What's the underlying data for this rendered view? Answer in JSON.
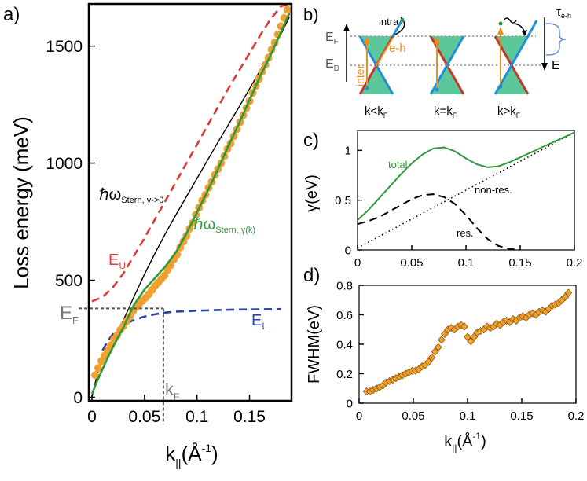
{
  "colors": {
    "orange": "#f0a030",
    "green": "#2e9a3a",
    "red": "#d93a3a",
    "blue": "#2a45a0",
    "cone_fill": "#5cc79a",
    "cone_blue": "#1f8fd8",
    "cone_red": "#c0392b",
    "gray": "#777777"
  },
  "chart_data": [
    {
      "id": "a",
      "type": "line",
      "panel_label": "a)",
      "xlabel_main": "k",
      "xlabel_sub": "||",
      "xlabel_unit": "(Å",
      "xlabel_sup": "-1",
      "xlabel_close": ")",
      "ylabel": "Loss energy (meV)",
      "xlim": [
        -0.003,
        0.19
      ],
      "ylim": [
        -15,
        1680
      ],
      "xticks": [
        0,
        0.05,
        0.1,
        0.15
      ],
      "xtick_labels": [
        "0",
        "0.05",
        "0.1",
        "0.15"
      ],
      "yticks": [
        0,
        500,
        1000,
        1500
      ],
      "ytick_labels": [
        "0",
        "500",
        "1000",
        "1500"
      ],
      "annotations": {
        "EF_main": "E",
        "EF_sub": "F",
        "kF_main": "k",
        "kF_sub": "F",
        "EU_main": "E",
        "EU_sub": "U",
        "EL_main": "E",
        "EL_sub": "L",
        "stern0_main": "ℏω",
        "stern0_sub": "Stern, γ->0",
        "sternk_main": "ℏω",
        "sternk_sub": "Stern, γ(k)"
      },
      "EF_value": 380,
      "kF_value": 0.068,
      "series": [
        {
          "name": "experiment",
          "style": "markers",
          "x": [
            0.003,
            0.006,
            0.009,
            0.012,
            0.015,
            0.018,
            0.021,
            0.024,
            0.027,
            0.03,
            0.033,
            0.036,
            0.039,
            0.042,
            0.045,
            0.048,
            0.051,
            0.054,
            0.057,
            0.06,
            0.063,
            0.066,
            0.069,
            0.072,
            0.075,
            0.078,
            0.081,
            0.084,
            0.087,
            0.09,
            0.093,
            0.096,
            0.099,
            0.102,
            0.105,
            0.108,
            0.111,
            0.114,
            0.117,
            0.12,
            0.123,
            0.126,
            0.129,
            0.132,
            0.135,
            0.138,
            0.141,
            0.144,
            0.147,
            0.15,
            0.153,
            0.156,
            0.159,
            0.162,
            0.165,
            0.168,
            0.171,
            0.174,
            0.177,
            0.18,
            0.183,
            0.186
          ],
          "y": [
            95,
            125,
            155,
            178,
            200,
            222,
            248,
            265,
            288,
            305,
            325,
            345,
            368,
            385,
            400,
            412,
            425,
            440,
            458,
            475,
            490,
            505,
            520,
            545,
            565,
            590,
            610,
            640,
            665,
            690,
            720,
            745,
            780,
            810,
            840,
            865,
            895,
            920,
            950,
            975,
            1000,
            1030,
            1060,
            1085,
            1115,
            1145,
            1175,
            1205,
            1235,
            1265,
            1300,
            1330,
            1360,
            1390,
            1420,
            1450,
            1485,
            1515,
            1550,
            1585,
            1620,
            1655
          ]
        },
        {
          "name": "E_U",
          "style": "dashed",
          "x": [
            0,
            0.01,
            0.02,
            0.03,
            0.04,
            0.05,
            0.06,
            0.07,
            0.08,
            0.09,
            0.1,
            0.11,
            0.12,
            0.13,
            0.14,
            0.15,
            0.16,
            0.17,
            0.18,
            0.188
          ],
          "y": [
            410,
            428,
            470,
            530,
            605,
            680,
            760,
            840,
            920,
            1000,
            1080,
            1160,
            1240,
            1320,
            1395,
            1470,
            1545,
            1615,
            1670,
            1680
          ]
        },
        {
          "name": "E_L",
          "style": "dashed",
          "x": [
            0.01,
            0.015,
            0.02,
            0.025,
            0.03,
            0.035,
            0.04,
            0.05,
            0.06,
            0.07,
            0.08,
            0.1,
            0.12,
            0.14,
            0.16,
            0.18
          ],
          "y": [
            200,
            240,
            270,
            292,
            308,
            320,
            330,
            345,
            355,
            362,
            366,
            370,
            373,
            375,
            376,
            377
          ]
        },
        {
          "name": "stern_gamma0",
          "style": "solid",
          "x": [
            0,
            0.005,
            0.01,
            0.02,
            0.03,
            0.04,
            0.05,
            0.06,
            0.07,
            0.08,
            0.1,
            0.12,
            0.14,
            0.16,
            0.18,
            0.188
          ],
          "y": [
            0,
            100,
            150,
            240,
            330,
            430,
            525,
            615,
            700,
            780,
            935,
            1090,
            1240,
            1395,
            1550,
            1625
          ]
        },
        {
          "name": "stern_gammak",
          "style": "solid",
          "x": [
            0,
            0.005,
            0.01,
            0.015,
            0.02,
            0.03,
            0.04,
            0.05,
            0.06,
            0.07,
            0.08,
            0.09,
            0.1,
            0.11,
            0.12,
            0.13,
            0.14,
            0.15,
            0.16,
            0.17,
            0.18,
            0.188
          ],
          "y": [
            15,
            70,
            120,
            170,
            215,
            300,
            395,
            460,
            510,
            560,
            620,
            700,
            790,
            880,
            975,
            1075,
            1170,
            1270,
            1370,
            1460,
            1560,
            1640
          ]
        }
      ]
    },
    {
      "id": "c",
      "type": "line",
      "panel_label": "c)",
      "ylabel": "γ(eV)",
      "xlim": [
        0,
        0.2
      ],
      "ylim": [
        0,
        1.2
      ],
      "xticks": [
        0,
        0.05,
        0.1,
        0.15,
        0.2
      ],
      "xtick_labels": [
        "0",
        "0.05",
        "0.1",
        "0.15",
        "0.2"
      ],
      "yticks": [
        0,
        0.5,
        1
      ],
      "ytick_labels": [
        "0",
        "0.5",
        "1"
      ],
      "legend": {
        "total": "total",
        "nonres": "non-res.",
        "res": "res."
      },
      "series": [
        {
          "name": "total",
          "style": "solid",
          "x": [
            0,
            0.01,
            0.02,
            0.03,
            0.04,
            0.05,
            0.06,
            0.07,
            0.08,
            0.09,
            0.1,
            0.11,
            0.12,
            0.13,
            0.14,
            0.15,
            0.16,
            0.17,
            0.18,
            0.19,
            0.2
          ],
          "y": [
            0.3,
            0.4,
            0.52,
            0.64,
            0.76,
            0.87,
            0.96,
            1.02,
            1.03,
            0.99,
            0.92,
            0.86,
            0.83,
            0.84,
            0.88,
            0.93,
            0.98,
            1.03,
            1.08,
            1.13,
            1.18
          ]
        },
        {
          "name": "non-res.",
          "style": "dotted",
          "x": [
            0,
            0.2
          ],
          "y": [
            0.02,
            1.18
          ]
        },
        {
          "name": "res.",
          "style": "dashed",
          "x": [
            0,
            0.01,
            0.02,
            0.03,
            0.04,
            0.05,
            0.06,
            0.07,
            0.08,
            0.09,
            0.1,
            0.11,
            0.12,
            0.13,
            0.14,
            0.15
          ],
          "y": [
            0.26,
            0.29,
            0.33,
            0.39,
            0.45,
            0.51,
            0.55,
            0.56,
            0.53,
            0.46,
            0.35,
            0.22,
            0.11,
            0.04,
            0.01,
            0.0
          ]
        }
      ]
    },
    {
      "id": "d",
      "type": "scatter",
      "panel_label": "d)",
      "ylabel": "FWHM(eV)",
      "xlabel_main": "k",
      "xlabel_sub": "||",
      "xlabel_unit": "(Å",
      "xlabel_sup": "-1",
      "xlabel_close": ")",
      "xlim": [
        0,
        0.2
      ],
      "ylim": [
        0,
        0.8
      ],
      "xticks": [
        0,
        0.05,
        0.1,
        0.15,
        0.2
      ],
      "xtick_labels": [
        "0",
        "0.05",
        "0.1",
        "0.15",
        "0.2"
      ],
      "yticks": [
        0,
        0.2,
        0.4,
        0.6,
        0.8
      ],
      "ytick_labels": [
        "0",
        "0.2",
        "0.4",
        "0.6",
        "0.8"
      ],
      "series": [
        {
          "name": "FWHM",
          "x": [
            0.007,
            0.01,
            0.013,
            0.016,
            0.019,
            0.022,
            0.025,
            0.028,
            0.031,
            0.034,
            0.037,
            0.04,
            0.043,
            0.046,
            0.049,
            0.052,
            0.055,
            0.058,
            0.061,
            0.064,
            0.067,
            0.07,
            0.073,
            0.076,
            0.079,
            0.082,
            0.085,
            0.088,
            0.091,
            0.094,
            0.097,
            0.1,
            0.103,
            0.106,
            0.109,
            0.112,
            0.115,
            0.118,
            0.121,
            0.124,
            0.127,
            0.13,
            0.133,
            0.136,
            0.139,
            0.142,
            0.145,
            0.148,
            0.151,
            0.154,
            0.157,
            0.16,
            0.163,
            0.166,
            0.169,
            0.172,
            0.175,
            0.178,
            0.181,
            0.184,
            0.187,
            0.19,
            0.193
          ],
          "y": [
            0.08,
            0.08,
            0.09,
            0.1,
            0.11,
            0.12,
            0.14,
            0.15,
            0.16,
            0.17,
            0.18,
            0.19,
            0.2,
            0.21,
            0.22,
            0.22,
            0.23,
            0.25,
            0.26,
            0.28,
            0.31,
            0.35,
            0.38,
            0.43,
            0.47,
            0.5,
            0.51,
            0.5,
            0.52,
            0.53,
            0.52,
            0.45,
            0.42,
            0.45,
            0.48,
            0.49,
            0.5,
            0.52,
            0.51,
            0.52,
            0.54,
            0.53,
            0.55,
            0.56,
            0.55,
            0.57,
            0.56,
            0.58,
            0.59,
            0.58,
            0.6,
            0.61,
            0.6,
            0.62,
            0.63,
            0.62,
            0.64,
            0.66,
            0.67,
            0.68,
            0.7,
            0.72,
            0.75
          ]
        }
      ]
    }
  ],
  "panel_b": {
    "panel_label": "b)",
    "intra": "intra",
    "inter": "inter",
    "eh": "e-h",
    "EF_main": "E",
    "EF_sub": "F",
    "ED_main": "E",
    "ED_sub": "D",
    "E_axis": "E",
    "tau_main": "τ",
    "tau_sub": "e-h",
    "cases": [
      {
        "main": "k<k",
        "sub": "F"
      },
      {
        "main": "k=k",
        "sub": "F"
      },
      {
        "main": "k>k",
        "sub": "F"
      }
    ]
  }
}
